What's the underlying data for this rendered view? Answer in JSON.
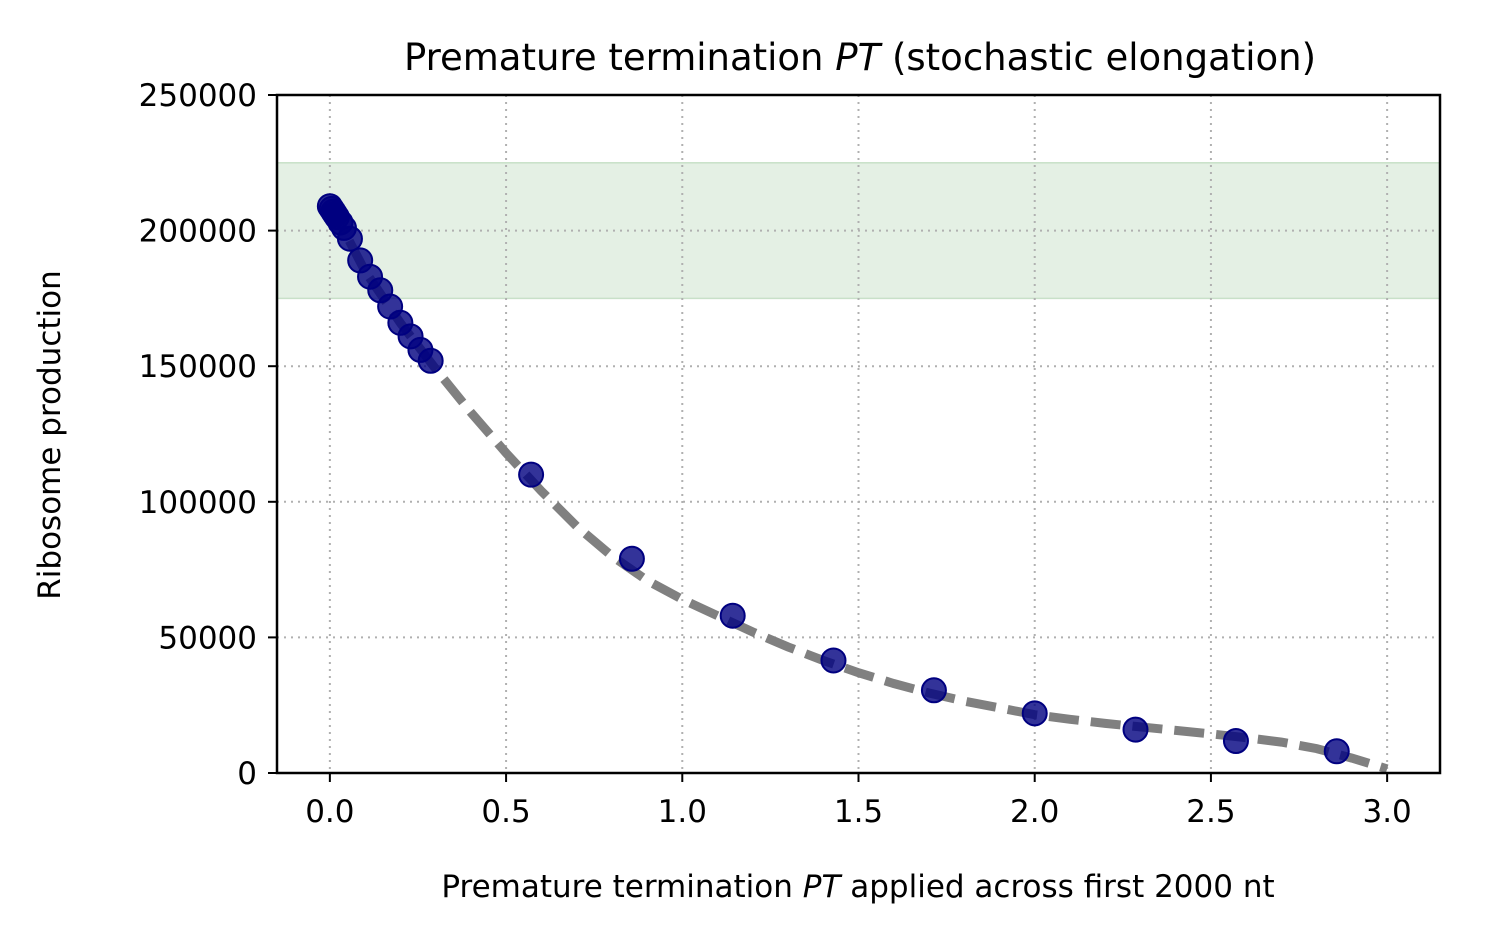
{
  "chart_data": {
    "type": "scatter",
    "title": {
      "prefix": "Premature termination ",
      "symbol": "PT",
      "suffix": " (stochastic elongation)"
    },
    "xlabel": {
      "prefix": "Premature termination ",
      "symbol": "PT",
      "suffix": " applied across first 2000 nt"
    },
    "ylabel": "Ribosome production",
    "xlim": [
      -0.15,
      3.15
    ],
    "ylim": [
      0,
      250000
    ],
    "x_ticks": [
      "0.0",
      "0.5",
      "1.0",
      "1.5",
      "2.0",
      "2.5",
      "3.0"
    ],
    "y_ticks": [
      "0",
      "50000",
      "100000",
      "150000",
      "200000",
      "250000"
    ],
    "grid": true,
    "shaded_band": {
      "y_min": 175000,
      "y_max": 225000,
      "color": "#e4f0e4"
    },
    "series": [
      {
        "kind": "scatter",
        "color": "#000080",
        "x": [
          0.0,
          0.005,
          0.01,
          0.015,
          0.02,
          0.03,
          0.04,
          0.057,
          0.086,
          0.114,
          0.143,
          0.171,
          0.2,
          0.229,
          0.257,
          0.286,
          0.571,
          0.857,
          1.143,
          1.429,
          1.714,
          2.0,
          2.286,
          2.571,
          2.857
        ],
        "y": [
          209000,
          208000,
          207000,
          206000,
          205000,
          203000,
          201000,
          197000,
          189000,
          183000,
          178000,
          172000,
          166000,
          161000,
          156000,
          152000,
          110000,
          79000,
          58000,
          41500,
          30500,
          22000,
          16000,
          11800,
          8000
        ]
      },
      {
        "kind": "dashed-line",
        "color": "#808080",
        "x": [
          0.0,
          0.1,
          0.2,
          0.3,
          0.4,
          0.5,
          0.6,
          0.7,
          0.8,
          0.9,
          1.0,
          1.1,
          1.2,
          1.3,
          1.4,
          1.5,
          1.6,
          1.7,
          1.8,
          1.9,
          2.0,
          2.1,
          2.2,
          2.3,
          2.4,
          2.5,
          2.6,
          2.7,
          2.8,
          2.9,
          3.0
        ],
        "y": [
          210000,
          185000,
          166000,
          149000,
          133000,
          118000,
          104000,
          91000,
          80000,
          71000,
          64000,
          58000,
          52000,
          46500,
          41500,
          37000,
          33000,
          29500,
          26500,
          24000,
          21500,
          19800,
          18300,
          17000,
          15700,
          14400,
          13000,
          11400,
          9000,
          5500,
          1500
        ]
      }
    ]
  }
}
